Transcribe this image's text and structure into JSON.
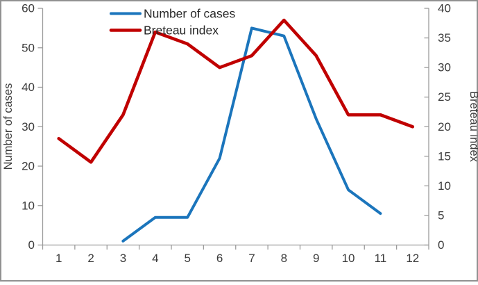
{
  "chart_data": {
    "type": "line",
    "title": "",
    "x_categories": [
      "1",
      "2",
      "3",
      "4",
      "5",
      "6",
      "7",
      "8",
      "9",
      "10",
      "11",
      "12"
    ],
    "series": [
      {
        "name": "Number of cases",
        "axis": "left",
        "color": "#1B75BC",
        "stroke_width": 4,
        "x": [
          3,
          4,
          5,
          6,
          7,
          8,
          9,
          10,
          11
        ],
        "values": [
          1,
          7,
          7,
          22,
          55,
          53,
          32,
          14,
          8
        ]
      },
      {
        "name": "Breteau index",
        "axis": "right",
        "color": "#C00000",
        "stroke_width": 4.6,
        "x": [
          1,
          2,
          3,
          4,
          5,
          6,
          7,
          8,
          9,
          10,
          11,
          12
        ],
        "values": [
          18,
          14,
          22,
          36,
          34,
          30,
          32,
          38,
          32,
          22,
          22,
          20
        ]
      }
    ],
    "left_axis": {
      "label": "Number of cases",
      "min": 0,
      "max": 60,
      "step": 10,
      "tick_labels": [
        "0",
        "10",
        "20",
        "30",
        "40",
        "50",
        "60"
      ]
    },
    "right_axis": {
      "label": "Breteau index",
      "min": 0,
      "max": 40,
      "step": 5,
      "tick_labels": [
        "0",
        "5",
        "10",
        "15",
        "20",
        "25",
        "30",
        "35",
        "40"
      ]
    },
    "x_axis": {
      "tick_labels": [
        "1",
        "2",
        "3",
        "4",
        "5",
        "6",
        "7",
        "8",
        "9",
        "10",
        "11",
        "12"
      ]
    },
    "legend": {
      "position": "top-center"
    },
    "grid": "off",
    "colors": {
      "axis": "#9C9C9C",
      "text": "#3B3B3B",
      "legend_text": "#262626",
      "border": "#919191",
      "background": "#FFFFFF"
    }
  }
}
